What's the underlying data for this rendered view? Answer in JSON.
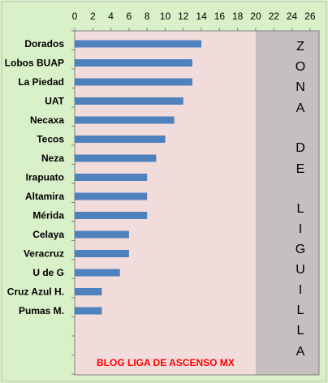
{
  "chart_data": {
    "type": "bar",
    "orientation": "horizontal",
    "categories": [
      "Dorados",
      "Lobos BUAP",
      "La Piedad",
      "UAT",
      "Necaxa",
      "Tecos",
      "Neza",
      "Irapuato",
      "Altamira",
      "Mérida",
      "Celaya",
      "Veracruz",
      "U de G",
      "Cruz Azul H.",
      "Pumas M."
    ],
    "values": [
      14,
      13,
      13,
      12,
      11,
      10,
      9,
      8,
      8,
      8,
      6,
      6,
      5,
      3,
      3
    ],
    "xticks": [
      "0",
      "2",
      "4",
      "6",
      "8",
      "10",
      "12",
      "14",
      "16",
      "18",
      "20",
      "22",
      "24",
      "26"
    ],
    "xlim": [
      0,
      27
    ],
    "xaxis_position": "top",
    "grid": false,
    "legend": "none",
    "zone_letters": [
      "Z",
      "O",
      "N",
      "A",
      "D",
      "E",
      "L",
      "I",
      "G",
      "U",
      "I",
      "L",
      "L",
      "A"
    ],
    "watermark": "BLOG LIGA  DE ASCENSO MX",
    "colors": {
      "outer_background": "#d9f1c9",
      "plot_area": "#f2dcdb",
      "zone_band": "#c5bfc1",
      "bar": "#4f81bd",
      "watermark": "#ff0000"
    }
  }
}
